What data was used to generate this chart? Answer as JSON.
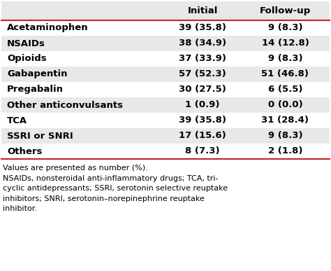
{
  "rows": [
    [
      "Acetaminophen",
      "39 (35.8)",
      "9 (8.3)"
    ],
    [
      "NSAIDs",
      "38 (34.9)",
      "14 (12.8)"
    ],
    [
      "Opioids",
      "37 (33.9)",
      "9 (8.3)"
    ],
    [
      "Gabapentin",
      "57 (52.3)",
      "51 (46.8)"
    ],
    [
      "Pregabalin",
      "30 (27.5)",
      "6 (5.5)"
    ],
    [
      "Other anticonvulsants",
      "1 (0.9)",
      "0 (0.0)"
    ],
    [
      "TCA",
      "39 (35.8)",
      "31 (28.4)"
    ],
    [
      "SSRI or SNRI",
      "17 (15.6)",
      "9 (8.3)"
    ],
    [
      "Others",
      "8 (7.3)",
      "2 (1.8)"
    ]
  ],
  "col_headers": [
    "",
    "Initial",
    "Follow-up"
  ],
  "footer_lines": [
    "Values are presented as number (%).",
    "NSAIDs, nonsteroidal anti-inflammatory drugs; TCA, tri-",
    "cyclic antidepressants; SSRI, serotonin selective reuptake",
    "inhibitors; SNRI, serotonin–norepinephrine reuptake",
    "inhibitor."
  ],
  "bg_color_odd": "#e8e8e8",
  "bg_color_even": "#ffffff",
  "header_bg": "#e8e8e8",
  "border_color": "#cc2222",
  "text_color": "#000000",
  "header_fontsize": 9.5,
  "cell_fontsize": 9.5,
  "footer_fontsize": 8.0,
  "fig_width": 4.74,
  "fig_height": 3.87,
  "dpi": 100
}
